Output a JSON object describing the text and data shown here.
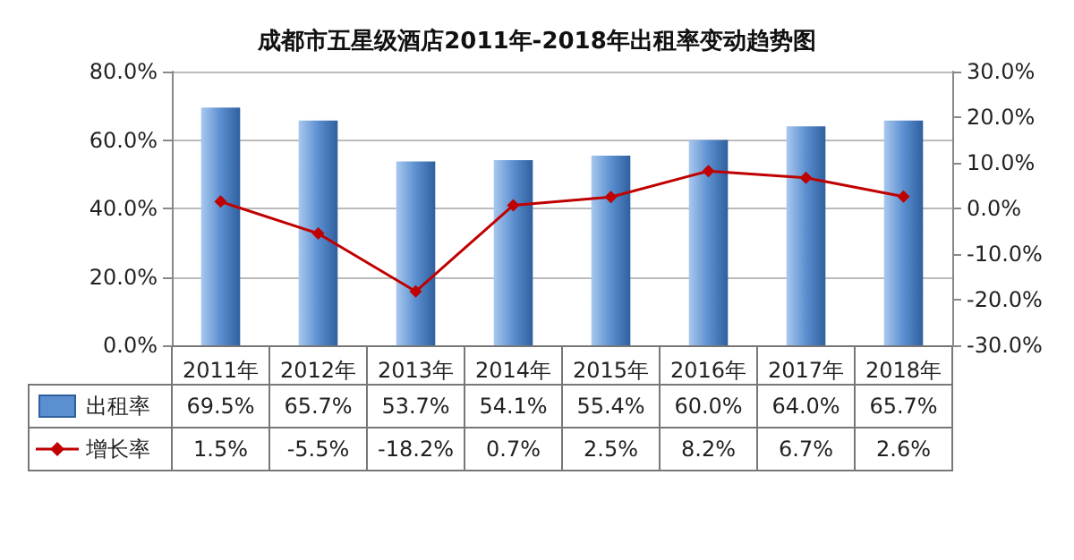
{
  "chart_data": {
    "type": "bar",
    "title": "成都市五星级酒店2011年-2018年出租率变动趋势图",
    "categories": [
      "2011年",
      "2012年",
      "2013年",
      "2014年",
      "2015年",
      "2016年",
      "2017年",
      "2018年"
    ],
    "series": [
      {
        "name": "出租率",
        "color": "#5b8fd0",
        "values": [
          69.5,
          65.7,
          53.7,
          54.1,
          55.4,
          60.0,
          64.0,
          65.7
        ],
        "value_labels": [
          "69.5%",
          "65.7%",
          "53.7%",
          "54.1%",
          "55.4%",
          "60.0%",
          "64.0%",
          "65.7%"
        ]
      },
      {
        "name": "增长率",
        "type": "line",
        "axis": "y2",
        "color": "#c00000",
        "marker": "diamond",
        "values": [
          1.5,
          -5.5,
          -18.2,
          0.7,
          2.5,
          8.2,
          6.7,
          2.6
        ],
        "value_labels": [
          "1.5%",
          "-5.5%",
          "-18.2%",
          "0.7%",
          "2.5%",
          "8.2%",
          "6.7%",
          "2.6%"
        ]
      }
    ],
    "ylim": [
      0,
      80
    ],
    "yticks": [
      {
        "value": 0,
        "label": "0.0%"
      },
      {
        "value": 20,
        "label": "20.0%"
      },
      {
        "value": 40,
        "label": "40.0%"
      },
      {
        "value": 60,
        "label": "60.0%"
      },
      {
        "value": 80,
        "label": "80.0%"
      }
    ],
    "y2lim": [
      -30,
      30
    ],
    "y2ticks": [
      {
        "value": -30,
        "label": "-30.0%"
      },
      {
        "value": -20,
        "label": "-20.0%"
      },
      {
        "value": -10,
        "label": "-10.0%"
      },
      {
        "value": 0,
        "label": "0.0%"
      },
      {
        "value": 10,
        "label": "10.0%"
      },
      {
        "value": 20,
        "label": "20.0%"
      },
      {
        "value": 30,
        "label": "30.0%"
      }
    ],
    "grid": "y",
    "legend": "bottom"
  }
}
